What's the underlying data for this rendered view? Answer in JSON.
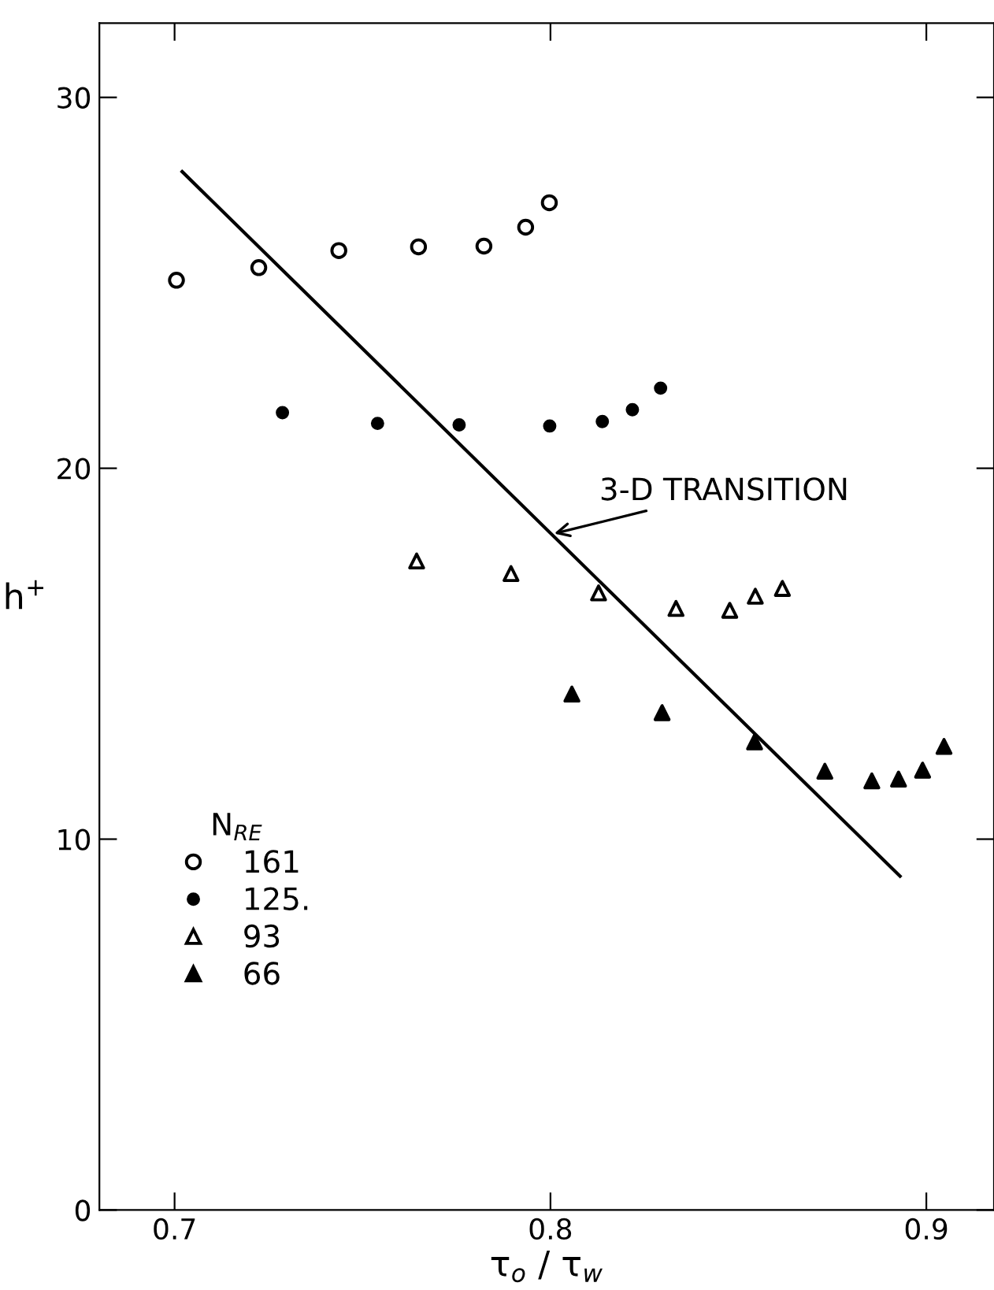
{
  "chart_data": {
    "type": "scatter",
    "xlabel": "τ$_{o}$ / τ$_{w}$",
    "ylabel": "h$^{+}$",
    "legend_title": "N$_{RE}$",
    "xlim": [
      0.68,
      0.918
    ],
    "xticks": [
      0.7,
      0.8,
      0.9
    ],
    "ylim": [
      0,
      32
    ],
    "yticks": [
      0,
      10,
      20,
      30
    ],
    "grid": false,
    "legend": "left",
    "series": [
      {
        "name": "161",
        "color": "#ffffff",
        "marker": "circle",
        "x": [
          0.7005,
          0.7224,
          0.7437,
          0.7649,
          0.7823,
          0.7934,
          0.7997
        ],
        "values": [
          25.07,
          25.41,
          25.87,
          25.97,
          25.99,
          26.5,
          27.16
        ]
      },
      {
        "name": "125.",
        "color": "#000000",
        "marker": "circle",
        "x": [
          0.7287,
          0.754,
          0.7757,
          0.7998,
          0.8138,
          0.8218,
          0.8293
        ],
        "values": [
          21.5,
          21.21,
          21.17,
          21.14,
          21.26,
          21.58,
          22.16
        ]
      },
      {
        "name": "93",
        "color": "#ffffff",
        "marker": "triangle",
        "x": [
          0.7644,
          0.7895,
          0.8128,
          0.8334,
          0.8477,
          0.8545,
          0.8617
        ],
        "values": [
          17.5,
          17.16,
          16.64,
          16.22,
          16.17,
          16.55,
          16.76
        ]
      },
      {
        "name": "66",
        "color": "#000000",
        "marker": "triangle",
        "x": [
          0.8057,
          0.8297,
          0.8543,
          0.873,
          0.8855,
          0.8926,
          0.899,
          0.9047
        ],
        "values": [
          13.91,
          13.41,
          12.62,
          11.83,
          11.57,
          11.62,
          11.86,
          12.5
        ]
      },
      {
        "type": "line",
        "color": "#000000",
        "marker": "none",
        "x": [
          0.702,
          0.893
        ],
        "values": [
          28.0,
          9.0
        ]
      }
    ],
    "annotations": [
      {
        "text": "3-D TRANSITION",
        "x": 0.801,
        "y": 18.24
      }
    ]
  }
}
